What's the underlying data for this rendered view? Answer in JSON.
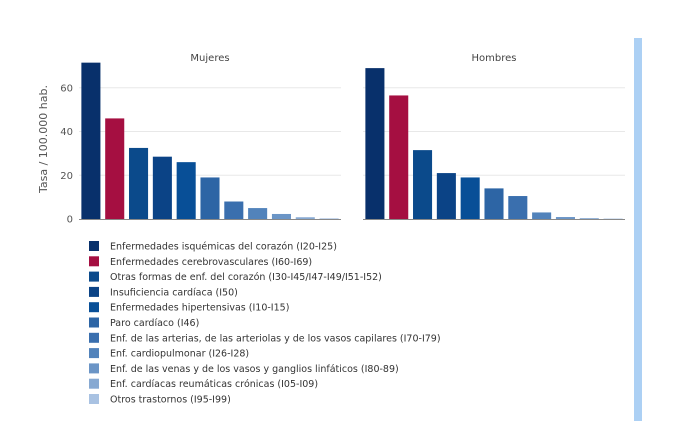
{
  "chart_data": {
    "type": "bar",
    "ylabel": "Tasa / 100.000 hab.",
    "ylim": [
      0,
      75
    ],
    "yticks": [
      0,
      20,
      40,
      60
    ],
    "panels": [
      {
        "title": "Mujeres",
        "values": [
          71.5,
          46,
          32.5,
          28.5,
          26,
          19,
          8,
          5,
          2.3,
          0.8,
          0.3
        ]
      },
      {
        "title": "Hombres",
        "values": [
          69,
          56.5,
          31.5,
          21,
          19,
          14,
          10.5,
          3,
          0.9,
          0.4,
          0.2
        ]
      }
    ],
    "series": [
      {
        "name": "Enfermedades isquémicas del corazón (I20-I25)",
        "color": "#08306b"
      },
      {
        "name": "Enfermedades cerebrovasculares (I60-I69)",
        "color": "#a50f41"
      },
      {
        "name": "Otras formas de enf. del corazón (I30-I45/I47-I49/I51-I52)",
        "color": "#0b4a8b"
      },
      {
        "name": "Insuficiencia cardíaca (I50)",
        "color": "#0b4386"
      },
      {
        "name": "Enfermedades hipertensivas (I10-I15)",
        "color": "#084f97"
      },
      {
        "name": "Paro cardíaco (I46)",
        "color": "#2d65a5"
      },
      {
        "name": "Enf. de las arterias, de las arteriolas y de los vasos capilares (I70-I79)",
        "color": "#3a6fae"
      },
      {
        "name": "Enf. cardiopulmonar (I26-I28)",
        "color": "#5283bb"
      },
      {
        "name": "Enf. de las venas y de los vasos y ganglios linfáticos (I80-89)",
        "color": "#6b95c6"
      },
      {
        "name": "Enf. cardíacas reumáticas crónicas (I05-I09)",
        "color": "#87a9d2"
      },
      {
        "name": "Otros trastornos (I95-I99)",
        "color": "#a9c2e2"
      }
    ]
  }
}
